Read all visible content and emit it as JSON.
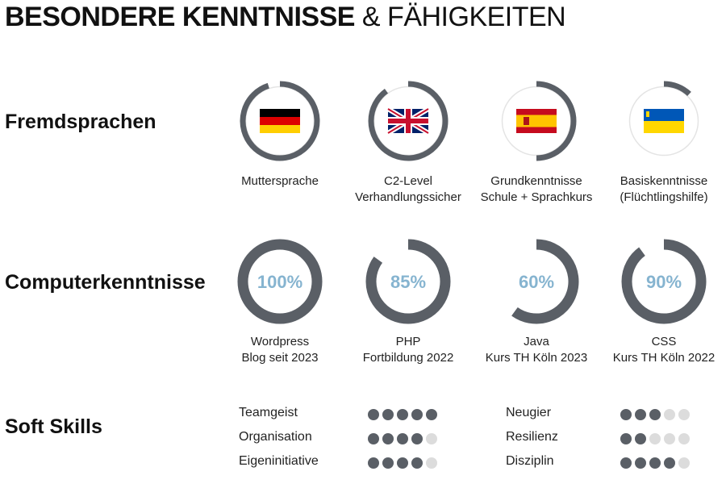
{
  "title": {
    "bold": "BESONDERE KENNTNISSE",
    "light": "& FÄHIGKEITEN"
  },
  "sections": {
    "languages": "Fremdsprachen",
    "computer": "Computerkenntnisse",
    "soft": "Soft Skills"
  },
  "languages": [
    {
      "flag": "germany-flag",
      "level": 0.95,
      "line1": "Muttersprache",
      "line2": ""
    },
    {
      "flag": "uk-flag",
      "level": 0.9,
      "line1": "C2-Level",
      "line2": "Verhandlungssicher"
    },
    {
      "flag": "spain-flag",
      "level": 0.5,
      "line1": "Grundkenntnisse",
      "line2": "Schule + Sprachkurs"
    },
    {
      "flag": "ukraine-flag",
      "level": 0.12,
      "line1": "Basiskenntnisse",
      "line2": "(Flüchtlingshilfe)"
    }
  ],
  "computer": [
    {
      "percent_label": "100%",
      "level": 1.0,
      "line1": "Wordpress",
      "line2": "Blog seit 2023"
    },
    {
      "percent_label": "85%",
      "level": 0.85,
      "line1": "PHP",
      "line2": "Fortbildung 2022"
    },
    {
      "percent_label": "60%",
      "level": 0.6,
      "line1": "Java",
      "line2": "Kurs TH Köln 2023"
    },
    {
      "percent_label": "90%",
      "level": 0.9,
      "line1": "CSS",
      "line2": "Kurs TH Köln 2022"
    }
  ],
  "soft_skills": [
    {
      "label": "Teamgeist",
      "rating": 5,
      "max": 5
    },
    {
      "label": "Organisation",
      "rating": 4,
      "max": 5
    },
    {
      "label": "Eigeninitiative",
      "rating": 4,
      "max": 5
    },
    {
      "label": "Neugier",
      "rating": 3,
      "max": 5
    },
    {
      "label": "Resilienz",
      "rating": 2,
      "max": 5
    },
    {
      "label": "Disziplin",
      "rating": 4,
      "max": 5
    }
  ],
  "colors": {
    "ring": "#5a5f66",
    "track": "#dcdcdc",
    "percent": "#86b4d0"
  }
}
